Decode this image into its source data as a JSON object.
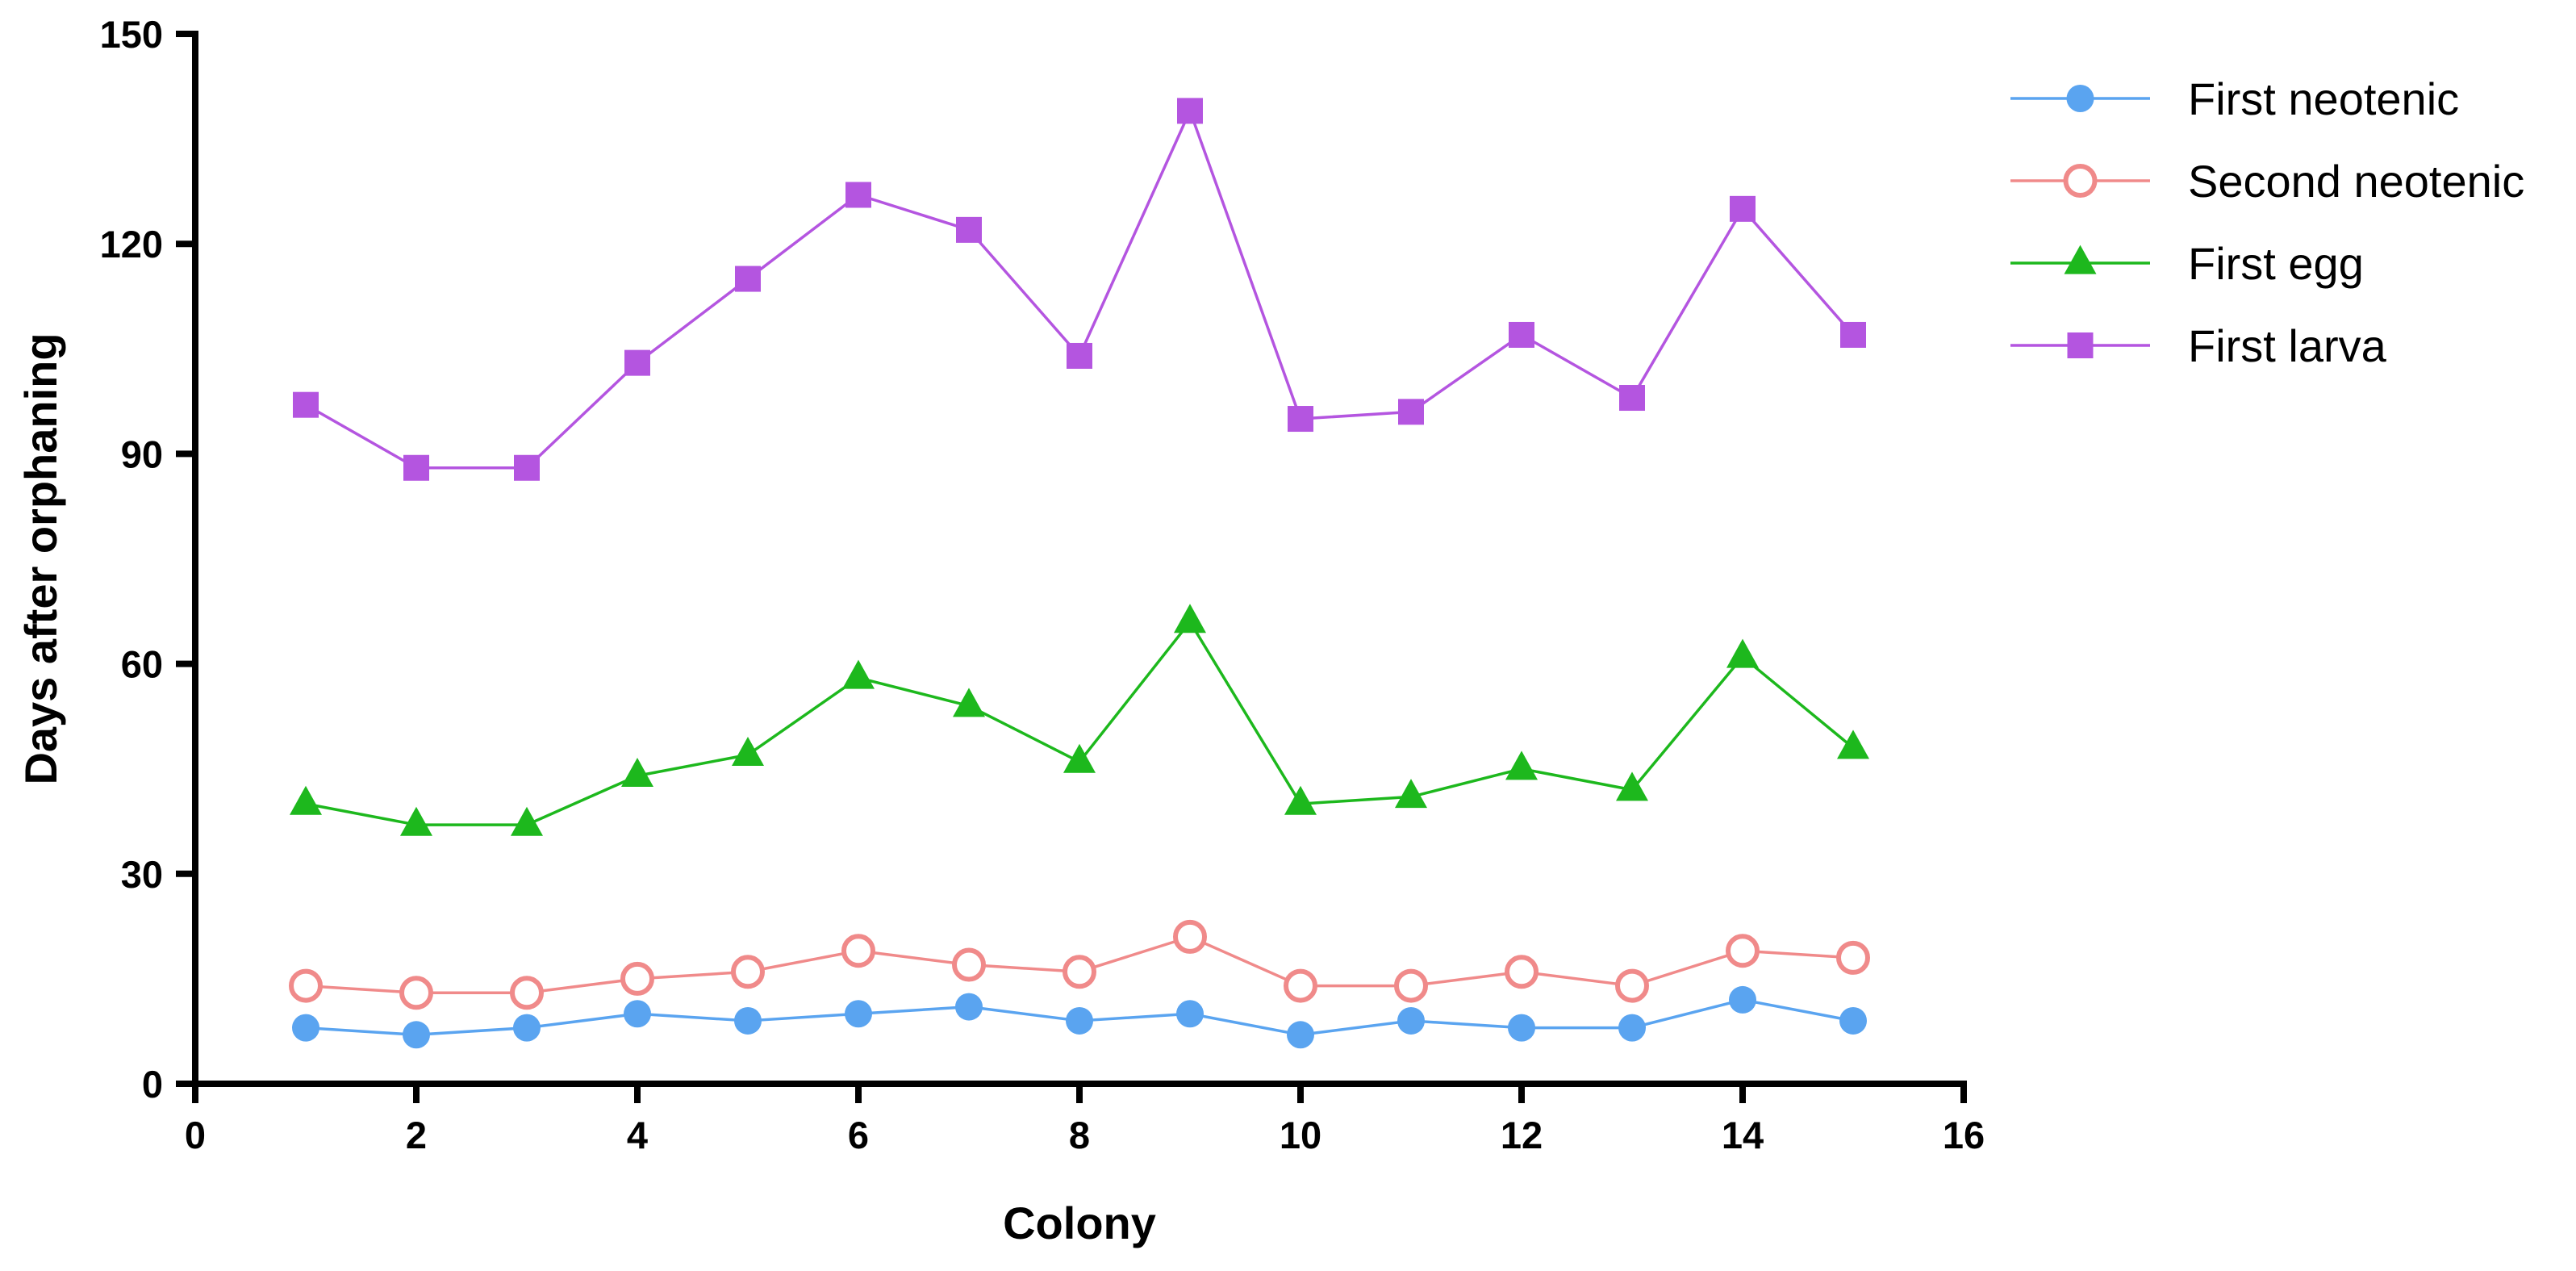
{
  "chart_data": {
    "type": "line",
    "title": "",
    "xlabel": "Colony",
    "ylabel": "Days after orphaning",
    "xlim": [
      0,
      16
    ],
    "ylim": [
      0,
      150
    ],
    "xticks": [
      0,
      2,
      4,
      6,
      8,
      10,
      12,
      14,
      16
    ],
    "yticks": [
      0,
      30,
      60,
      90,
      120,
      150
    ],
    "grid": false,
    "legend_position": "top-right",
    "x": [
      1,
      2,
      3,
      4,
      5,
      6,
      7,
      8,
      9,
      10,
      11,
      12,
      13,
      14,
      15
    ],
    "series": [
      {
        "name": "First neotenic",
        "color": "#5aa4f0",
        "marker": "filled-circle",
        "values": [
          8,
          7,
          8,
          10,
          9,
          10,
          11,
          9,
          10,
          7,
          9,
          8,
          8,
          12,
          9
        ]
      },
      {
        "name": "Second neotenic",
        "color": "#f08a8a",
        "marker": "open-circle",
        "values": [
          14,
          13,
          13,
          15,
          16,
          19,
          17,
          16,
          21,
          14,
          14,
          16,
          14,
          19,
          18
        ]
      },
      {
        "name": "First egg",
        "color": "#1db81d",
        "marker": "triangle",
        "values": [
          40,
          37,
          37,
          44,
          47,
          58,
          54,
          46,
          66,
          40,
          41,
          45,
          42,
          61,
          48
        ]
      },
      {
        "name": "First larva",
        "color": "#b455e0",
        "marker": "square",
        "values": [
          97,
          88,
          88,
          103,
          115,
          127,
          122,
          104,
          139,
          95,
          96,
          107,
          98,
          125,
          107
        ]
      }
    ]
  }
}
